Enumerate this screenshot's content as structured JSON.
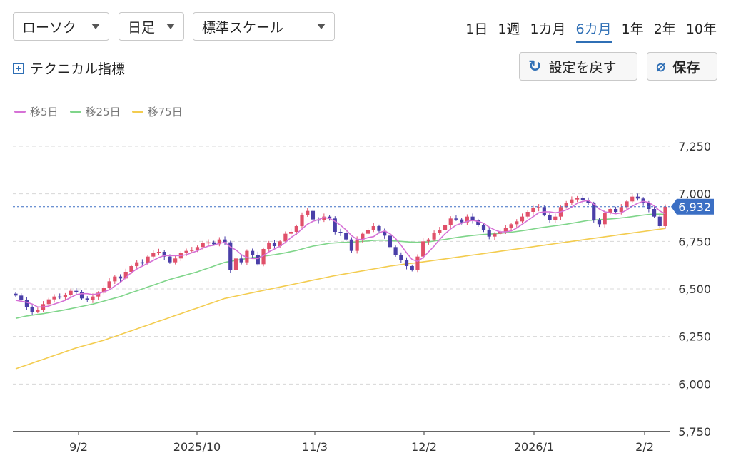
{
  "controls": {
    "chart_type": "ローソク",
    "period": "日足",
    "scale": "標準スケール",
    "ranges": [
      "1日",
      "1週",
      "1カ月",
      "6カ月",
      "1年",
      "2年",
      "10年"
    ],
    "active_range": "6カ月",
    "tech_label": "テクニカル指標",
    "reset_label": "設定を戻す",
    "save_label": "保存"
  },
  "colors": {
    "up": "#e0506a",
    "down": "#4a3fa8",
    "ma5": "#d671d6",
    "ma25": "#7fd58a",
    "ma75": "#f3cc4f",
    "accent": "#2f6fb5",
    "last_price_line": "#3b6fc4"
  },
  "chart_data": {
    "type": "candlestick",
    "legend": [
      {
        "name": "移5日",
        "color": "#d671d6"
      },
      {
        "name": "移25日",
        "color": "#7fd58a"
      },
      {
        "name": "移75日",
        "color": "#f3cc4f"
      }
    ],
    "x_ticks": [
      "9/2",
      "2025/10",
      "11/3",
      "12/2",
      "2026/1",
      "2/2"
    ],
    "y_ticks": [
      "7,250",
      "7,000",
      "6,750",
      "6,500",
      "6,250",
      "6,000",
      "5,750"
    ],
    "ylim": [
      5750,
      7250
    ],
    "last_price": 6932,
    "last_price_label": "6,932",
    "closes": [
      6465,
      6440,
      6405,
      6380,
      6390,
      6420,
      6445,
      6460,
      6455,
      6470,
      6490,
      6485,
      6450,
      6440,
      6460,
      6480,
      6505,
      6540,
      6565,
      6555,
      6590,
      6620,
      6640,
      6635,
      6670,
      6690,
      6695,
      6670,
      6640,
      6660,
      6690,
      6700,
      6705,
      6720,
      6740,
      6745,
      6735,
      6760,
      6745,
      6600,
      6660,
      6640,
      6700,
      6680,
      6630,
      6710,
      6740,
      6725,
      6750,
      6790,
      6800,
      6830,
      6890,
      6910,
      6865,
      6860,
      6880,
      6870,
      6800,
      6795,
      6760,
      6700,
      6760,
      6790,
      6810,
      6830,
      6805,
      6780,
      6720,
      6680,
      6650,
      6620,
      6600,
      6670,
      6750,
      6760,
      6795,
      6810,
      6835,
      6870,
      6865,
      6850,
      6880,
      6860,
      6835,
      6810,
      6775,
      6790,
      6800,
      6820,
      6840,
      6855,
      6880,
      6905,
      6925,
      6930,
      6890,
      6860,
      6880,
      6930,
      6950,
      6970,
      6980,
      6965,
      6950,
      6860,
      6840,
      6900,
      6920,
      6905,
      6930,
      6960,
      6985,
      6975,
      6950,
      6920,
      6880,
      6830,
      6932
    ],
    "ma5": [
      6440,
      6435,
      6430,
      6420,
      6405,
      6405,
      6410,
      6420,
      6430,
      6440,
      6455,
      6470,
      6475,
      6475,
      6470,
      6475,
      6485,
      6495,
      6515,
      6535,
      6560,
      6585,
      6605,
      6620,
      6635,
      6650,
      6665,
      6675,
      6675,
      6675,
      6675,
      6680,
      6690,
      6700,
      6715,
      6725,
      6730,
      6740,
      6745,
      6720,
      6705,
      6680,
      6665,
      6660,
      6660,
      6675,
      6695,
      6710,
      6725,
      6745,
      6770,
      6790,
      6815,
      6840,
      6855,
      6865,
      6875,
      6870,
      6855,
      6835,
      6810,
      6780,
      6760,
      6760,
      6770,
      6775,
      6795,
      6805,
      6790,
      6765,
      6730,
      6690,
      6655,
      6645,
      6665,
      6695,
      6725,
      6760,
      6790,
      6815,
      6835,
      6845,
      6855,
      6860,
      6855,
      6845,
      6825,
      6810,
      6800,
      6800,
      6805,
      6820,
      6840,
      6860,
      6880,
      6900,
      6905,
      6905,
      6900,
      6905,
      6915,
      6930,
      6950,
      6960,
      6965,
      6945,
      6920,
      6905,
      6900,
      6895,
      6900,
      6915,
      6935,
      6950,
      6960,
      6955,
      6935,
      6910,
      6895
    ],
    "ma25": [
      6345,
      6352,
      6358,
      6362,
      6366,
      6370,
      6375,
      6380,
      6385,
      6390,
      6396,
      6402,
      6408,
      6414,
      6420,
      6428,
      6436,
      6444,
      6452,
      6460,
      6470,
      6480,
      6490,
      6500,
      6510,
      6520,
      6530,
      6540,
      6550,
      6558,
      6566,
      6574,
      6582,
      6590,
      6600,
      6610,
      6620,
      6630,
      6640,
      6645,
      6650,
      6655,
      6660,
      6665,
      6668,
      6672,
      6676,
      6680,
      6685,
      6690,
      6696,
      6702,
      6710,
      6718,
      6725,
      6730,
      6735,
      6740,
      6742,
      6744,
      6745,
      6745,
      6748,
      6750,
      6752,
      6755,
      6756,
      6756,
      6754,
      6752,
      6750,
      6748,
      6746,
      6745,
      6746,
      6748,
      6752,
      6756,
      6760,
      6765,
      6770,
      6774,
      6778,
      6781,
      6784,
      6786,
      6788,
      6790,
      6792,
      6795,
      6798,
      6802,
      6806,
      6810,
      6815,
      6820,
      6824,
      6828,
      6832,
      6836,
      6840,
      6845,
      6850,
      6855,
      6860,
      6862,
      6864,
      6866,
      6868,
      6870,
      6873,
      6876,
      6880,
      6884,
      6888,
      6891,
      6893,
      6893,
      6892
    ],
    "ma75": [
      6080,
      6090,
      6100,
      6110,
      6120,
      6130,
      6140,
      6150,
      6160,
      6170,
      6180,
      6190,
      6198,
      6206,
      6214,
      6222,
      6230,
      6240,
      6250,
      6260,
      6270,
      6280,
      6290,
      6300,
      6310,
      6320,
      6330,
      6340,
      6350,
      6360,
      6370,
      6380,
      6390,
      6400,
      6410,
      6420,
      6430,
      6440,
      6450,
      6456,
      6462,
      6468,
      6474,
      6480,
      6486,
      6492,
      6498,
      6504,
      6510,
      6516,
      6522,
      6528,
      6534,
      6540,
      6546,
      6552,
      6558,
      6564,
      6570,
      6575,
      6580,
      6585,
      6590,
      6595,
      6600,
      6605,
      6610,
      6615,
      6620,
      6624,
      6628,
      6632,
      6635,
      6638,
      6642,
      6646,
      6650,
      6654,
      6658,
      6662,
      6666,
      6670,
      6674,
      6678,
      6682,
      6686,
      6690,
      6694,
      6698,
      6702,
      6706,
      6710,
      6714,
      6718,
      6722,
      6726,
      6730,
      6734,
      6738,
      6742,
      6746,
      6750,
      6754,
      6758,
      6762,
      6766,
      6770,
      6774,
      6778,
      6782,
      6786,
      6790,
      6794,
      6798,
      6802,
      6806,
      6810,
      6814,
      6818
    ]
  }
}
